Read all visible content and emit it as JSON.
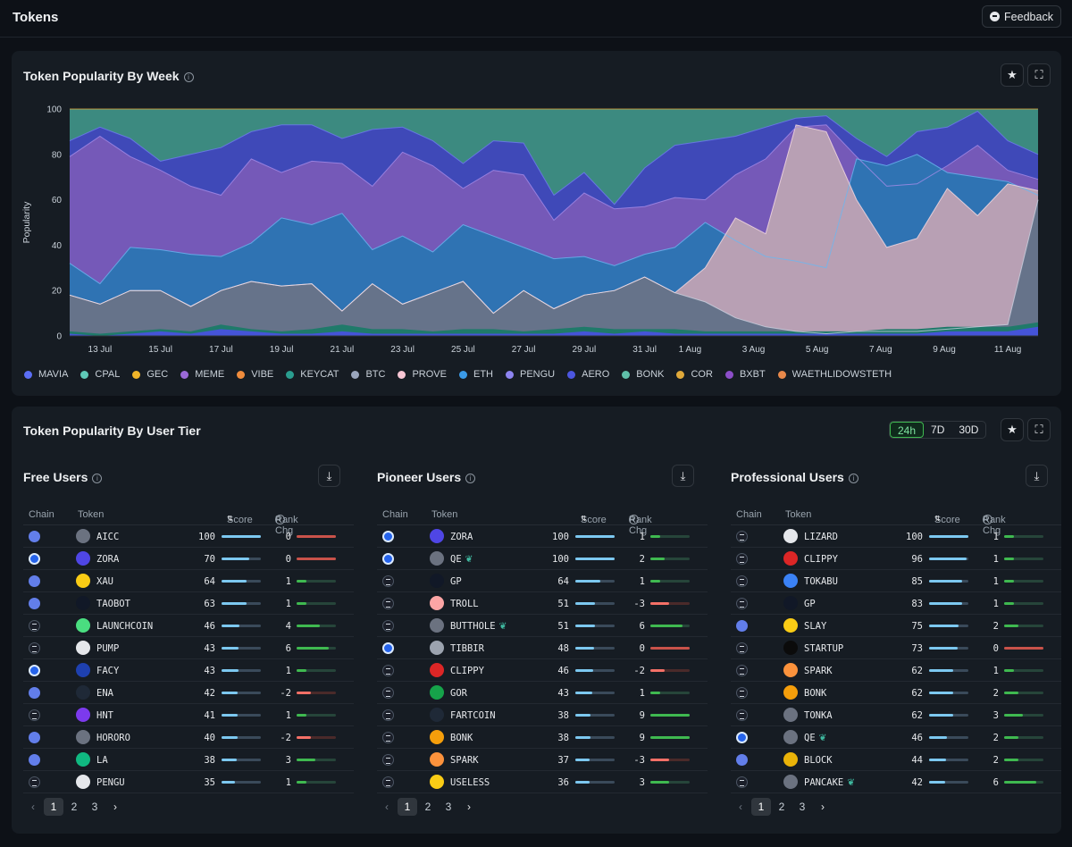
{
  "page": {
    "title": "Tokens",
    "feedback_label": "Feedback"
  },
  "weekly_card": {
    "title": "Token Popularity By Week"
  },
  "chart_data": {
    "type": "area",
    "stacked": true,
    "ylabel": "Popularity",
    "ylim": [
      0,
      100
    ],
    "yticks": [
      0,
      20,
      40,
      60,
      80,
      100
    ],
    "xtick_labels": [
      "13 Jul",
      "15 Jul",
      "17 Jul",
      "19 Jul",
      "21 Jul",
      "23 Jul",
      "25 Jul",
      "27 Jul",
      "29 Jul",
      "31 Jul",
      "1 Aug",
      "3 Aug",
      "5 Aug",
      "7 Aug",
      "9 Aug",
      "11 Aug"
    ],
    "legend_position": "bottom",
    "cumulative_boundaries": {
      "btc_top": [
        18,
        14,
        20,
        20,
        13,
        20,
        24,
        22,
        23,
        11,
        23,
        14,
        19,
        24,
        10,
        20,
        12,
        18,
        20,
        26,
        19,
        15,
        8,
        4,
        2,
        1,
        2,
        2,
        2,
        3,
        4,
        5,
        60
      ],
      "eth_top": [
        32,
        23,
        39,
        38,
        36,
        35,
        41,
        52,
        49,
        54,
        38,
        44,
        37,
        49,
        44,
        39,
        34,
        35,
        31,
        36,
        39,
        50,
        42,
        35,
        33,
        30,
        78,
        75,
        80,
        72,
        70,
        68,
        62
      ],
      "prove_top": [
        18,
        14,
        20,
        20,
        13,
        20,
        24,
        22,
        23,
        11,
        23,
        14,
        19,
        24,
        10,
        20,
        12,
        18,
        20,
        26,
        19,
        30,
        52,
        45,
        93,
        90,
        60,
        39,
        43,
        65,
        53,
        67,
        64
      ],
      "meme_top": [
        79,
        88,
        79,
        73,
        66,
        62,
        78,
        72,
        77,
        76,
        66,
        81,
        75,
        65,
        73,
        71,
        51,
        63,
        56,
        57,
        61,
        60,
        71,
        78,
        92,
        93,
        79,
        66,
        67,
        75,
        84,
        73,
        69
      ],
      "aero_top": [
        86,
        92,
        87,
        77,
        80,
        83,
        90,
        93,
        93,
        87,
        91,
        92,
        86,
        76,
        86,
        85,
        62,
        72,
        58,
        74,
        84,
        86,
        88,
        92,
        96,
        97,
        87,
        79,
        90,
        92,
        99,
        86,
        80
      ]
    },
    "series": [
      {
        "name": "MAVIA",
        "color": "#5b6ef5"
      },
      {
        "name": "CPAL",
        "color": "#5fc9b8"
      },
      {
        "name": "GEC",
        "color": "#f0b429"
      },
      {
        "name": "MEME",
        "color": "#9b6ad8"
      },
      {
        "name": "VIBE",
        "color": "#f08c3c"
      },
      {
        "name": "KEYCAT",
        "color": "#2a9d8f"
      },
      {
        "name": "BTC",
        "color": "#9aa6bd"
      },
      {
        "name": "PROVE",
        "color": "#f7c6d4"
      },
      {
        "name": "ETH",
        "color": "#3b9be8"
      },
      {
        "name": "PENGU",
        "color": "#8d84f0"
      },
      {
        "name": "AERO",
        "color": "#4c56e0"
      },
      {
        "name": "BONK",
        "color": "#5fbfa9"
      },
      {
        "name": "COR",
        "color": "#e0a93a"
      },
      {
        "name": "BXBT",
        "color": "#8c4ec9"
      },
      {
        "name": "WAETHLIDOWSTETH",
        "color": "#e8884a"
      }
    ]
  },
  "tier_card": {
    "title": "Token Popularity By User Tier",
    "ranges": [
      "24h",
      "7D",
      "30D"
    ],
    "active_range": "24h"
  },
  "columns": {
    "chain": "Chain",
    "token": "Token",
    "score": "Score",
    "rank": "Rank Chg"
  },
  "pages": [
    "1",
    "2",
    "3"
  ],
  "panels": [
    {
      "title": "Free Users",
      "rows": [
        {
          "chain": "eth",
          "token": "AICC",
          "icon": "#6b7280",
          "score": "100",
          "rank": "0"
        },
        {
          "chain": "base",
          "token": "ZORA",
          "icon": "#4f46e5",
          "score": "70",
          "rank": "0"
        },
        {
          "chain": "eth",
          "token": "XAU",
          "icon": "#facc15",
          "score": "64",
          "rank": "1"
        },
        {
          "chain": "eth",
          "token": "TAOBOT",
          "icon": "#111827",
          "score": "63",
          "rank": "1"
        },
        {
          "chain": "sol",
          "token": "LAUNCHCOIN",
          "icon": "#4ade80",
          "score": "46",
          "rank": "4"
        },
        {
          "chain": "sol",
          "token": "PUMP",
          "icon": "#e5e7eb",
          "score": "43",
          "rank": "6"
        },
        {
          "chain": "base",
          "token": "FACY",
          "icon": "#1e40af",
          "score": "43",
          "rank": "1"
        },
        {
          "chain": "eth",
          "token": "ENA",
          "icon": "#1f2937",
          "score": "42",
          "rank": "-2"
        },
        {
          "chain": "sol",
          "token": "HNT",
          "icon": "#7c3aed",
          "score": "41",
          "rank": "1"
        },
        {
          "chain": "eth",
          "token": "HORORO",
          "icon": "#6b7280",
          "score": "40",
          "rank": "-2"
        },
        {
          "chain": "eth",
          "token": "LA",
          "icon": "#10b981",
          "score": "38",
          "rank": "3"
        },
        {
          "chain": "sol",
          "token": "PENGU",
          "icon": "#e5e7eb",
          "score": "35",
          "rank": "1"
        }
      ]
    },
    {
      "title": "Pioneer Users",
      "rows": [
        {
          "chain": "base",
          "token": "ZORA",
          "icon": "#4f46e5",
          "score": "100",
          "rank": "1"
        },
        {
          "chain": "base",
          "token": "QE",
          "icon": "#6b7280",
          "score": "100",
          "rank": "2",
          "leaf": "❦"
        },
        {
          "chain": "sol",
          "token": "GP",
          "icon": "#111827",
          "score": "64",
          "rank": "1"
        },
        {
          "chain": "sol",
          "token": "TROLL",
          "icon": "#fca5a5",
          "score": "51",
          "rank": "-3"
        },
        {
          "chain": "sol",
          "token": "BUTTHOLE",
          "icon": "#6b7280",
          "score": "51",
          "rank": "6",
          "leaf": "❦"
        },
        {
          "chain": "base",
          "token": "TIBBIR",
          "icon": "#9ca3af",
          "score": "48",
          "rank": "0"
        },
        {
          "chain": "sol",
          "token": "CLIPPY",
          "icon": "#dc2626",
          "score": "46",
          "rank": "-2"
        },
        {
          "chain": "sol",
          "token": "GOR",
          "icon": "#16a34a",
          "score": "43",
          "rank": "1"
        },
        {
          "chain": "sol",
          "token": "FARTCOIN",
          "icon": "#1f2937",
          "score": "38",
          "rank": "9"
        },
        {
          "chain": "sol",
          "token": "BONK",
          "icon": "#f59e0b",
          "score": "38",
          "rank": "9"
        },
        {
          "chain": "sol",
          "token": "SPARK",
          "icon": "#fb923c",
          "score": "37",
          "rank": "-3"
        },
        {
          "chain": "sol",
          "token": "USELESS",
          "icon": "#facc15",
          "score": "36",
          "rank": "3"
        }
      ]
    },
    {
      "title": "Professional Users",
      "rows": [
        {
          "chain": "sol",
          "token": "LIZARD",
          "icon": "#e5e7eb",
          "score": "100",
          "rank": "1"
        },
        {
          "chain": "sol",
          "token": "CLIPPY",
          "icon": "#dc2626",
          "score": "96",
          "rank": "1"
        },
        {
          "chain": "sol",
          "token": "TOKABU",
          "icon": "#3b82f6",
          "score": "85",
          "rank": "1"
        },
        {
          "chain": "sol",
          "token": "GP",
          "icon": "#111827",
          "score": "83",
          "rank": "1"
        },
        {
          "chain": "eth",
          "token": "SLAY",
          "icon": "#facc15",
          "score": "75",
          "rank": "2"
        },
        {
          "chain": "sol",
          "token": "STARTUP",
          "icon": "#0b0b0b",
          "score": "73",
          "rank": "0"
        },
        {
          "chain": "sol",
          "token": "SPARK",
          "icon": "#fb923c",
          "score": "62",
          "rank": "1"
        },
        {
          "chain": "sol",
          "token": "BONK",
          "icon": "#f59e0b",
          "score": "62",
          "rank": "2"
        },
        {
          "chain": "sol",
          "token": "TONKA",
          "icon": "#6b7280",
          "score": "62",
          "rank": "3"
        },
        {
          "chain": "base",
          "token": "QE",
          "icon": "#6b7280",
          "score": "46",
          "rank": "2",
          "leaf": "❦"
        },
        {
          "chain": "eth",
          "token": "BLOCK",
          "icon": "#eab308",
          "score": "44",
          "rank": "2"
        },
        {
          "chain": "sol",
          "token": "PANCAKE",
          "icon": "#6b7280",
          "score": "42",
          "rank": "6",
          "leaf": "❦"
        }
      ]
    }
  ]
}
